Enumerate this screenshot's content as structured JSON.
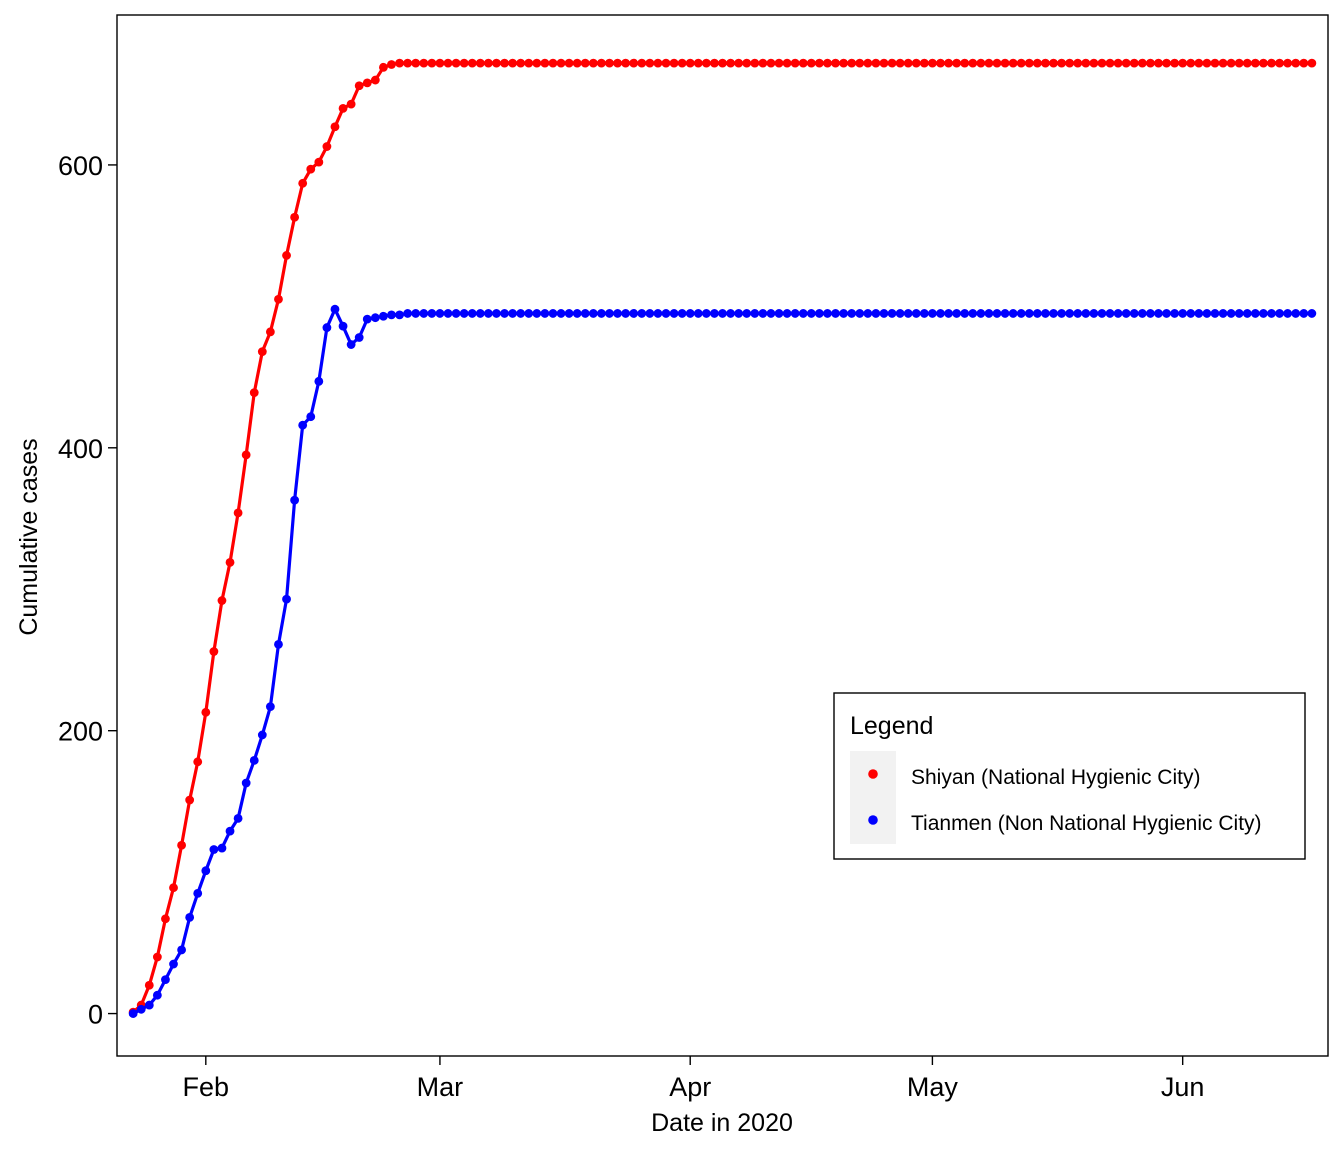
{
  "chart_data": {
    "type": "line",
    "xlabel": "Date in 2020",
    "ylabel": "Cumulative cases",
    "xlim": [
      "2020-01-21",
      "2020-06-19"
    ],
    "ylim": [
      -30,
      706
    ],
    "x_ticks": [
      {
        "date": "2020-02-01",
        "label": "Feb"
      },
      {
        "date": "2020-03-01",
        "label": "Mar"
      },
      {
        "date": "2020-04-01",
        "label": "Apr"
      },
      {
        "date": "2020-05-01",
        "label": "May"
      },
      {
        "date": "2020-06-01",
        "label": "Jun"
      }
    ],
    "y_ticks": [
      0,
      200,
      400,
      600
    ],
    "grid": false,
    "legend_position": "bottom-right",
    "legend": {
      "title": "Legend",
      "entries": [
        {
          "label": "Shiyan (National Hygienic City)",
          "color": "#ff0000"
        },
        {
          "label": "Tianmen (Non National Hygienic City)",
          "color": "#0000ff"
        }
      ]
    },
    "series": [
      {
        "name": "Shiyan (National Hygienic City)",
        "color": "#ff0000",
        "start_date": "2020-01-23",
        "note": "daily values from start_date; after the last listed value the series stays at hold_value through hold_until",
        "values": [
          1,
          6,
          20,
          40,
          67,
          89,
          119,
          151,
          178,
          213,
          256,
          292,
          319,
          354,
          395,
          439,
          468,
          482,
          505,
          536,
          563,
          587,
          597,
          602,
          613,
          627,
          640,
          643,
          656,
          658,
          660,
          669,
          671,
          672,
          672
        ],
        "hold_value": 672,
        "hold_until": "2020-06-17"
      },
      {
        "name": "Tianmen (Non National Hygienic City)",
        "color": "#0000ff",
        "start_date": "2020-01-23",
        "note": "daily values from start_date; after the last listed value the series stays at hold_value through hold_until",
        "values": [
          0,
          3,
          6,
          13,
          24,
          35,
          45,
          68,
          85,
          101,
          116,
          117,
          129,
          138,
          163,
          179,
          197,
          217,
          261,
          293,
          363,
          416,
          422,
          447,
          485,
          498,
          486,
          473,
          478,
          491,
          492,
          493,
          494,
          494
        ],
        "hold_value": 495,
        "hold_until": "2020-06-17"
      }
    ]
  }
}
